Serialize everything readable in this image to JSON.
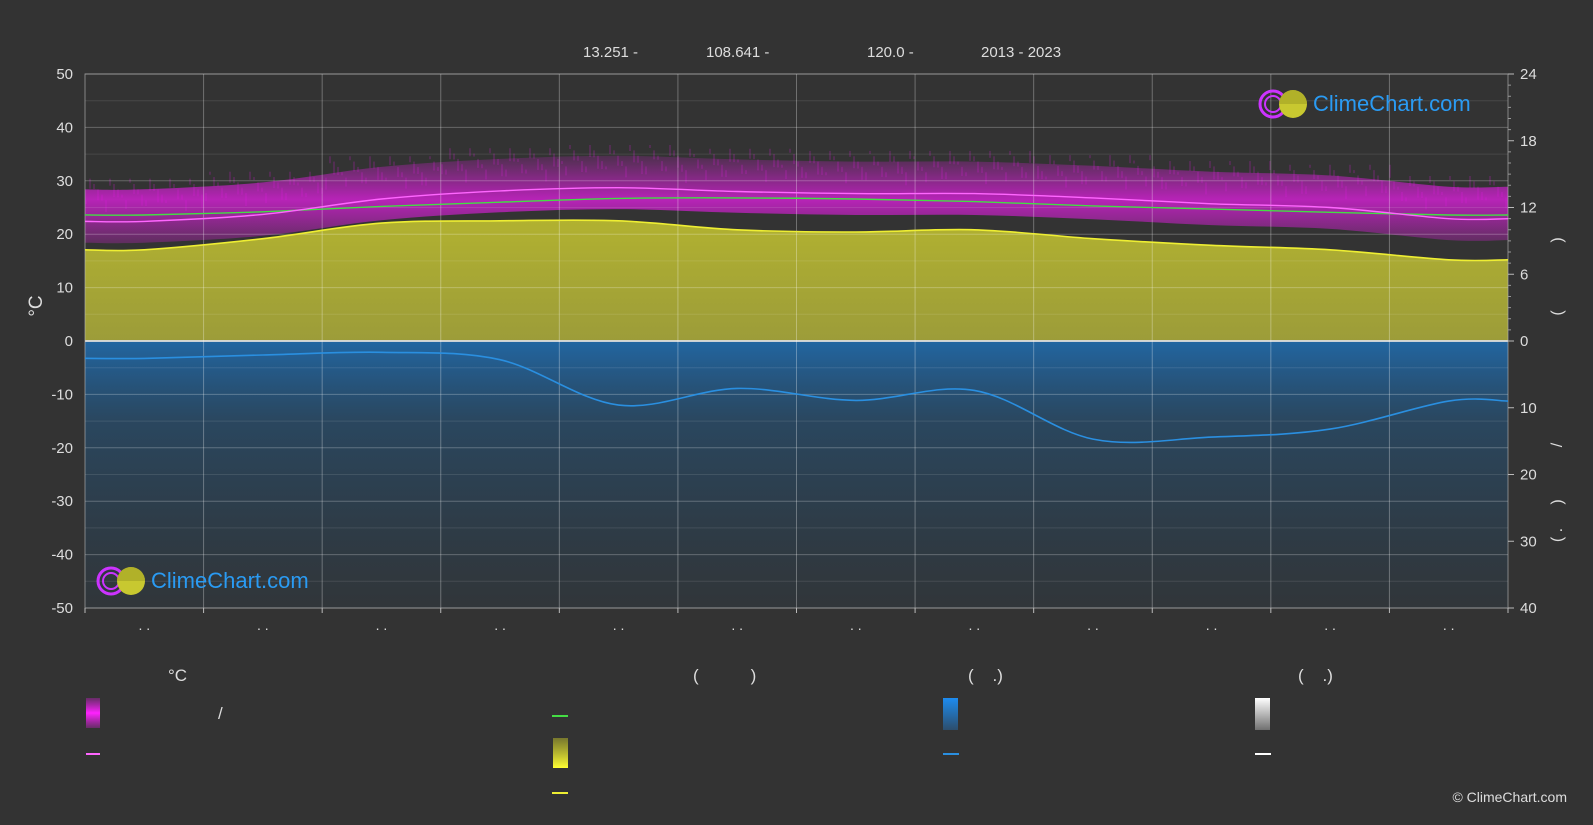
{
  "header": {
    "latitude": "13.251 -",
    "longitude": "108.641 -",
    "elevation": "120.0 -",
    "years": "2013 - 2023"
  },
  "chart_data": {
    "type": "line",
    "months": 12,
    "left_axis": {
      "label": "°C",
      "min": -50,
      "max": 50,
      "ticks": [
        50,
        40,
        30,
        20,
        10,
        0,
        -10,
        -20,
        -30,
        -40,
        -50
      ]
    },
    "right_axis_top": {
      "min": 0,
      "max": 24,
      "ticks": [
        24,
        18,
        12,
        6,
        0
      ]
    },
    "right_axis_bottom": {
      "min": 0,
      "max": 40,
      "ticks": [
        10,
        20,
        30,
        40
      ]
    },
    "right_axis_label_glyphs": [
      ")",
      "(",
      "/",
      ")",
      "(",
      "."
    ],
    "month_tick_labels": [
      ". .",
      ". .",
      ". .",
      ". .",
      ". .",
      ". .",
      ". .",
      ". .",
      ". .",
      ". .",
      ". .",
      ". ."
    ],
    "series": [
      {
        "key": "max_temp",
        "color": "#ff66ff",
        "values": [
          22.4,
          23.7,
          26.6,
          28.1,
          28.7,
          28.0,
          27.6,
          27.6,
          26.8,
          25.7,
          25.0,
          22.9
        ]
      },
      {
        "key": "mean_temp",
        "color": "#44dd44",
        "values": [
          23.6,
          24.2,
          25.2,
          26.0,
          26.7,
          26.8,
          26.6,
          26.1,
          25.3,
          24.7,
          24.1,
          23.6
        ]
      },
      {
        "key": "sunshine_hours",
        "color": "#eeee33",
        "axis": "right_top",
        "values": [
          8.2,
          9.2,
          10.6,
          10.8,
          10.8,
          10.0,
          9.8,
          10.0,
          9.2,
          8.6,
          8.2,
          7.3
        ]
      },
      {
        "key": "precipitation",
        "color": "#2a8fe0",
        "axis": "right_bottom",
        "values": [
          2.6,
          2.1,
          1.7,
          2.8,
          9.6,
          7.1,
          8.9,
          7.4,
          14.7,
          14.4,
          13.2,
          9.0
        ]
      }
    ]
  },
  "legend": {
    "col1_heading": "°C",
    "col2_heading": "(           )",
    "col3_heading": "(    .)",
    "col4_heading": "(    .)",
    "range_separator": "/",
    "colors": {
      "range": "#e31ee3",
      "max": "#ff66ff",
      "mean": "#44dd44",
      "sunshine": "#dede28",
      "sunshine_line": "#eeee33",
      "rain": "#1d8cf0",
      "rain_line": "#2a8fe0",
      "snow": "#ffffff",
      "snow_line": "#ffffff"
    }
  },
  "watermark": "ClimeChart.com",
  "copyright": "© ClimeChart.com"
}
